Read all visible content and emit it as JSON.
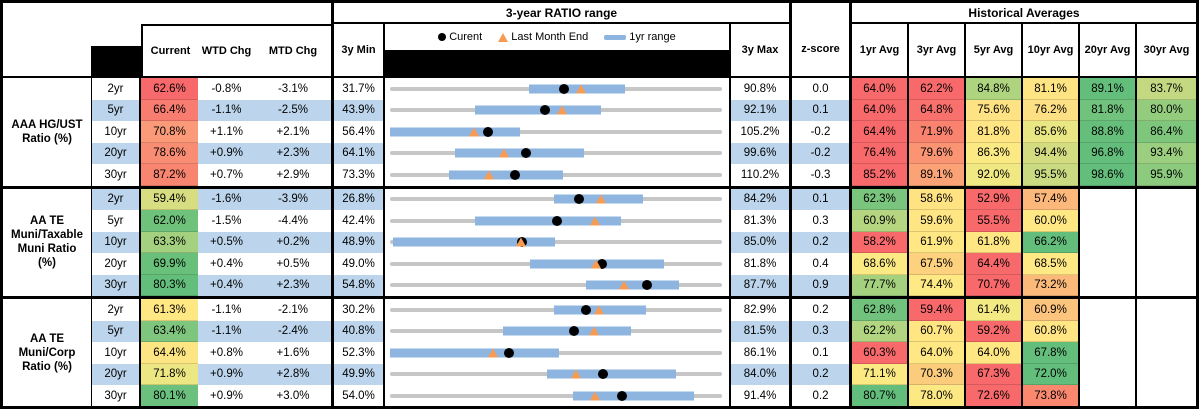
{
  "header": {
    "range_title": "3-year RATIO range",
    "hist_title": "Historical Averages",
    "current": "Current",
    "wtd": "WTD Chg",
    "mtd": "MTD Chg",
    "min": "3y Min",
    "max": "3y Max",
    "z": "z-score",
    "avgs": [
      "1yr Avg",
      "3yr Avg",
      "5yr Avg",
      "10yr Avg",
      "20yr Avg",
      "30yr Avg"
    ],
    "legend": {
      "current": "Curent",
      "last_month": "Last Month End",
      "range": "1yr range"
    }
  },
  "colors": {
    "stripe": "#BCD5EC",
    "bar": "#8EB4E0",
    "track": "#C6C6C6",
    "dot": "#000000",
    "triangle": "#F79B52",
    "border": "#000000"
  },
  "chart_data": {
    "type": "table",
    "embedded_chart": {
      "type": "bullet-range",
      "x_mapping": "each row scaled linearly from its 3y Min to its 3y Max",
      "markers": [
        "current (black dot)",
        "last month end (orange triangle)",
        "1yr range (blue bar)",
        "3yr range (gray track)"
      ]
    },
    "sections": [
      {
        "label": "AAA HG/UST\nRatio (%)",
        "rows": [
          {
            "tenor": "2yr",
            "cur": "62.6%",
            "curv": 62.6,
            "curbg": "#F8696B",
            "wtd": "-0.8%",
            "mtd": "-3.1%",
            "min": "31.7%",
            "minv": 31.7,
            "max": "90.8%",
            "maxv": 90.8,
            "z": "0.0",
            "lme": 65.7,
            "lo": 56.4,
            "hi": 73.6,
            "avgs": [
              [
                "64.0%",
                "#F8696B"
              ],
              [
                "62.2%",
                "#F8696B"
              ],
              [
                "84.8%",
                "#AFD47F"
              ],
              [
                "81.1%",
                "#FFE483"
              ],
              [
                "89.1%",
                "#63BE7B"
              ],
              [
                "83.7%",
                "#C2D981"
              ]
            ]
          },
          {
            "tenor": "5yr",
            "cur": "66.4%",
            "curv": 66.4,
            "curbg": "#F87D70",
            "wtd": "-1.1%",
            "mtd": "-2.5%",
            "min": "43.9%",
            "minv": 43.9,
            "max": "92.1%",
            "maxv": 92.1,
            "z": "0.1",
            "lme": 68.9,
            "lo": 56.3,
            "hi": 74.5,
            "avgs": [
              [
                "64.0%",
                "#F8696B"
              ],
              [
                "64.8%",
                "#F8716D"
              ],
              [
                "75.6%",
                "#FFE283"
              ],
              [
                "76.2%",
                "#FDE083"
              ],
              [
                "81.8%",
                "#70C27C"
              ],
              [
                "80.0%",
                "#94CC7E"
              ]
            ]
          },
          {
            "tenor": "10yr",
            "cur": "70.8%",
            "curv": 70.8,
            "curbg": "#FA9A78",
            "wtd": "+1.1%",
            "mtd": "+2.1%",
            "min": "56.4%",
            "minv": 56.4,
            "max": "105.2%",
            "maxv": 105.2,
            "z": "-0.2",
            "lme": 68.7,
            "lo": 56.4,
            "hi": 75.5,
            "avgs": [
              [
                "64.4%",
                "#F8696B"
              ],
              [
                "71.9%",
                "#F9836F"
              ],
              [
                "81.8%",
                "#FFE583"
              ],
              [
                "85.6%",
                "#E9E783"
              ],
              [
                "88.8%",
                "#65BF7B"
              ],
              [
                "86.4%",
                "#7FC67D"
              ]
            ]
          },
          {
            "tenor": "20yr",
            "cur": "78.6%",
            "curv": 78.6,
            "curbg": "#F98D73",
            "wtd": "+0.9%",
            "mtd": "+2.3%",
            "min": "64.1%",
            "minv": 64.1,
            "max": "99.6%",
            "maxv": 99.6,
            "z": "-0.2",
            "lme": 76.3,
            "lo": 71.1,
            "hi": 84.8,
            "avgs": [
              [
                "76.4%",
                "#F8696B"
              ],
              [
                "79.6%",
                "#FA9473"
              ],
              [
                "86.3%",
                "#FBE983"
              ],
              [
                "94.4%",
                "#D4DC81"
              ],
              [
                "96.8%",
                "#63BE7B"
              ],
              [
                "93.4%",
                "#9BCE7F"
              ]
            ]
          },
          {
            "tenor": "30yr",
            "cur": "87.2%",
            "curv": 87.2,
            "curbg": "#F8856F",
            "wtd": "+0.7%",
            "mtd": "+2.9%",
            "min": "73.3%",
            "minv": 73.3,
            "max": "110.2%",
            "maxv": 110.2,
            "z": "-0.3",
            "lme": 84.3,
            "lo": 79.9,
            "hi": 92.5,
            "avgs": [
              [
                "85.2%",
                "#F8696B"
              ],
              [
                "89.1%",
                "#FBA376"
              ],
              [
                "92.0%",
                "#EFE883"
              ],
              [
                "95.5%",
                "#C9DA81"
              ],
              [
                "98.6%",
                "#63BE7B"
              ],
              [
                "95.9%",
                "#8CCA7E"
              ]
            ]
          }
        ]
      },
      {
        "label": "AA TE\nMuni/Taxable\nMuni Ratio\n(%)",
        "rows": [
          {
            "tenor": "2yr",
            "cur": "59.4%",
            "curv": 59.4,
            "curbg": "#D8DD82",
            "wtd": "-1.6%",
            "mtd": "-3.9%",
            "min": "26.8%",
            "minv": 26.8,
            "max": "84.2%",
            "maxv": 84.2,
            "z": "0.1",
            "lme": 63.3,
            "lo": 55.2,
            "hi": 70.6,
            "avgs": [
              [
                "62.3%",
                "#7AC57D"
              ],
              [
                "58.6%",
                "#FFE383"
              ],
              [
                "52.9%",
                "#F8696B"
              ],
              [
                "57.4%",
                "#FCB77A"
              ],
              null,
              null
            ]
          },
          {
            "tenor": "5yr",
            "cur": "62.0%",
            "curv": 62.0,
            "curbg": "#6FC27C",
            "wtd": "-1.5%",
            "mtd": "-4.4%",
            "min": "42.4%",
            "minv": 42.4,
            "max": "81.3%",
            "maxv": 81.3,
            "z": "0.3",
            "lme": 66.4,
            "lo": 52.4,
            "hi": 69.5,
            "avgs": [
              [
                "60.9%",
                "#B5D580"
              ],
              [
                "59.6%",
                "#FFE684"
              ],
              [
                "55.5%",
                "#F8696B"
              ],
              [
                "60.0%",
                "#FFE884"
              ],
              null,
              null
            ]
          },
          {
            "tenor": "10yr",
            "cur": "63.3%",
            "curv": 63.3,
            "curbg": "#A4D17F",
            "wtd": "+0.5%",
            "mtd": "+0.2%",
            "min": "48.9%",
            "minv": 48.9,
            "max": "85.0%",
            "maxv": 85.0,
            "z": "0.2",
            "lme": 63.1,
            "lo": 49.2,
            "hi": 66.8,
            "avgs": [
              [
                "58.2%",
                "#F8696B"
              ],
              [
                "61.9%",
                "#FFE884"
              ],
              [
                "61.8%",
                "#FEE783"
              ],
              [
                "66.2%",
                "#63BE7B"
              ],
              null,
              null
            ]
          },
          {
            "tenor": "20yr",
            "cur": "69.9%",
            "curv": 69.9,
            "curbg": "#68C07B",
            "wtd": "+0.4%",
            "mtd": "+0.5%",
            "min": "49.0%",
            "minv": 49.0,
            "max": "81.8%",
            "maxv": 81.8,
            "z": "0.4",
            "lme": 69.4,
            "lo": 62.8,
            "hi": 76.1,
            "avgs": [
              [
                "68.6%",
                "#FBE983"
              ],
              [
                "67.5%",
                "#FDD17E"
              ],
              [
                "64.4%",
                "#F8696B"
              ],
              [
                "68.5%",
                "#FFE984"
              ],
              null,
              null
            ]
          },
          {
            "tenor": "30yr",
            "cur": "80.3%",
            "curv": 80.3,
            "curbg": "#63BE7B",
            "wtd": "+0.4%",
            "mtd": "+2.3%",
            "min": "54.8%",
            "minv": 54.8,
            "max": "87.7%",
            "maxv": 87.7,
            "z": "0.9",
            "lme": 78.0,
            "lo": 74.2,
            "hi": 83.4,
            "avgs": [
              [
                "77.7%",
                "#A5D17F"
              ],
              [
                "74.4%",
                "#FFE984"
              ],
              [
                "70.7%",
                "#F8696B"
              ],
              [
                "73.2%",
                "#FBBA7A"
              ],
              null,
              null
            ]
          }
        ]
      },
      {
        "label": "AA TE\nMuni/Corp\nRatio (%)",
        "rows": [
          {
            "tenor": "2yr",
            "cur": "61.3%",
            "curv": 61.3,
            "curbg": "#FFE884",
            "wtd": "-1.1%",
            "mtd": "-2.1%",
            "min": "30.2%",
            "minv": 30.2,
            "max": "82.9%",
            "maxv": 82.9,
            "z": "0.2",
            "lme": 63.4,
            "lo": 56.3,
            "hi": 70.8,
            "avgs": [
              [
                "62.8%",
                "#70C27C"
              ],
              [
                "59.4%",
                "#F8696B"
              ],
              [
                "61.4%",
                "#F4EA84"
              ],
              [
                "60.9%",
                "#FCC47C"
              ],
              null,
              null
            ]
          },
          {
            "tenor": "5yr",
            "cur": "63.4%",
            "curv": 63.4,
            "curbg": "#7EC67D",
            "wtd": "-1.1%",
            "mtd": "-2.4%",
            "min": "40.8%",
            "minv": 40.8,
            "max": "81.5%",
            "maxv": 81.5,
            "z": "0.3",
            "lme": 65.8,
            "lo": 54.7,
            "hi": 70.4,
            "avgs": [
              [
                "62.2%",
                "#B1D580"
              ],
              [
                "60.7%",
                "#FFE683"
              ],
              [
                "59.2%",
                "#F8696B"
              ],
              [
                "60.8%",
                "#FFE583"
              ],
              null,
              null
            ]
          },
          {
            "tenor": "10yr",
            "cur": "64.4%",
            "curv": 64.4,
            "curbg": "#FEE583",
            "wtd": "+0.8%",
            "mtd": "+1.6%",
            "min": "52.3%",
            "minv": 52.3,
            "max": "86.1%",
            "maxv": 86.1,
            "z": "0.1",
            "lme": 62.8,
            "lo": 52.3,
            "hi": 69.5,
            "avgs": [
              [
                "60.3%",
                "#F8696B"
              ],
              [
                "64.0%",
                "#FFE884"
              ],
              [
                "64.0%",
                "#FEE783"
              ],
              [
                "67.8%",
                "#63BE7B"
              ],
              null,
              null
            ]
          },
          {
            "tenor": "20yr",
            "cur": "71.8%",
            "curv": 71.8,
            "curbg": "#EDE783",
            "wtd": "+0.9%",
            "mtd": "+2.8%",
            "min": "49.9%",
            "minv": 49.9,
            "max": "84.0%",
            "maxv": 84.0,
            "z": "0.2",
            "lme": 69.0,
            "lo": 66.0,
            "hi": 79.3,
            "avgs": [
              [
                "71.1%",
                "#FBE983"
              ],
              [
                "70.3%",
                "#FCCC7D"
              ],
              [
                "67.3%",
                "#F8696B"
              ],
              [
                "72.0%",
                "#63BE7B"
              ],
              null,
              null
            ]
          },
          {
            "tenor": "30yr",
            "cur": "80.1%",
            "curv": 80.1,
            "curbg": "#6AC07C",
            "wtd": "+0.9%",
            "mtd": "+3.0%",
            "min": "54.0%",
            "minv": 54.0,
            "max": "91.4%",
            "maxv": 91.4,
            "z": "0.2",
            "lme": 77.1,
            "lo": 74.6,
            "hi": 88.2,
            "avgs": [
              [
                "80.7%",
                "#63BE7B"
              ],
              [
                "78.0%",
                "#FDE983"
              ],
              [
                "72.6%",
                "#F8696B"
              ],
              [
                "73.8%",
                "#F9886F"
              ],
              null,
              null
            ]
          }
        ]
      }
    ]
  }
}
